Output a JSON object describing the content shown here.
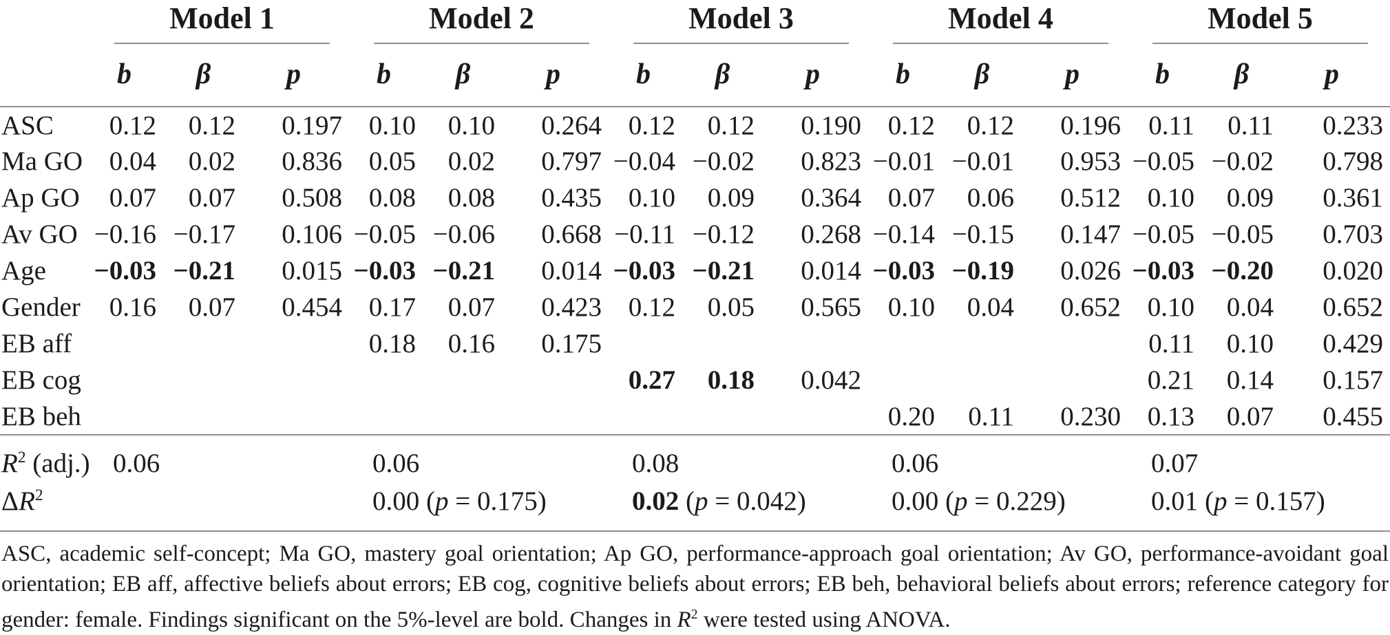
{
  "table": {
    "models": [
      "Model 1",
      "Model 2",
      "Model 3",
      "Model 4",
      "Model 5"
    ],
    "sub_columns": [
      "b",
      "β",
      "p"
    ],
    "predictor_rows": [
      {
        "label": "ASC",
        "cells": [
          [
            "0.12",
            0
          ],
          [
            "0.12",
            0
          ],
          [
            "0.197",
            0
          ],
          [
            "0.10",
            0
          ],
          [
            "0.10",
            0
          ],
          [
            "0.264",
            0
          ],
          [
            "0.12",
            0
          ],
          [
            "0.12",
            0
          ],
          [
            "0.190",
            0
          ],
          [
            "0.12",
            0
          ],
          [
            "0.12",
            0
          ],
          [
            "0.196",
            0
          ],
          [
            "0.11",
            0
          ],
          [
            "0.11",
            0
          ],
          [
            "0.233",
            0
          ]
        ]
      },
      {
        "label": "Ma GO",
        "cells": [
          [
            "0.04",
            0
          ],
          [
            "0.02",
            0
          ],
          [
            "0.836",
            0
          ],
          [
            "0.05",
            0
          ],
          [
            "0.02",
            0
          ],
          [
            "0.797",
            0
          ],
          [
            "−0.04",
            0
          ],
          [
            "−0.02",
            0
          ],
          [
            "0.823",
            0
          ],
          [
            "−0.01",
            0
          ],
          [
            "−0.01",
            0
          ],
          [
            "0.953",
            0
          ],
          [
            "−0.05",
            0
          ],
          [
            "−0.02",
            0
          ],
          [
            "0.798",
            0
          ]
        ]
      },
      {
        "label": "Ap GO",
        "cells": [
          [
            "0.07",
            0
          ],
          [
            "0.07",
            0
          ],
          [
            "0.508",
            0
          ],
          [
            "0.08",
            0
          ],
          [
            "0.08",
            0
          ],
          [
            "0.435",
            0
          ],
          [
            "0.10",
            0
          ],
          [
            "0.09",
            0
          ],
          [
            "0.364",
            0
          ],
          [
            "0.07",
            0
          ],
          [
            "0.06",
            0
          ],
          [
            "0.512",
            0
          ],
          [
            "0.10",
            0
          ],
          [
            "0.09",
            0
          ],
          [
            "0.361",
            0
          ]
        ]
      },
      {
        "label": "Av GO",
        "cells": [
          [
            "−0.16",
            0
          ],
          [
            "−0.17",
            0
          ],
          [
            "0.106",
            0
          ],
          [
            "−0.05",
            0
          ],
          [
            "−0.06",
            0
          ],
          [
            "0.668",
            0
          ],
          [
            "−0.11",
            0
          ],
          [
            "−0.12",
            0
          ],
          [
            "0.268",
            0
          ],
          [
            "−0.14",
            0
          ],
          [
            "−0.15",
            0
          ],
          [
            "0.147",
            0
          ],
          [
            "−0.05",
            0
          ],
          [
            "−0.05",
            0
          ],
          [
            "0.703",
            0
          ]
        ]
      },
      {
        "label": "Age",
        "cells": [
          [
            "−0.03",
            1
          ],
          [
            "−0.21",
            1
          ],
          [
            "0.015",
            0
          ],
          [
            "−0.03",
            1
          ],
          [
            "−0.21",
            1
          ],
          [
            "0.014",
            0
          ],
          [
            "−0.03",
            1
          ],
          [
            "−0.21",
            1
          ],
          [
            "0.014",
            0
          ],
          [
            "−0.03",
            1
          ],
          [
            "−0.19",
            1
          ],
          [
            "0.026",
            0
          ],
          [
            "−0.03",
            1
          ],
          [
            "−0.20",
            1
          ],
          [
            "0.020",
            0
          ]
        ]
      },
      {
        "label": "Gender",
        "cells": [
          [
            "0.16",
            0
          ],
          [
            "0.07",
            0
          ],
          [
            "0.454",
            0
          ],
          [
            "0.17",
            0
          ],
          [
            "0.07",
            0
          ],
          [
            "0.423",
            0
          ],
          [
            "0.12",
            0
          ],
          [
            "0.05",
            0
          ],
          [
            "0.565",
            0
          ],
          [
            "0.10",
            0
          ],
          [
            "0.04",
            0
          ],
          [
            "0.652",
            0
          ],
          [
            "0.10",
            0
          ],
          [
            "0.04",
            0
          ],
          [
            "0.652",
            0
          ]
        ]
      },
      {
        "label": "EB aff",
        "cells": [
          null,
          null,
          null,
          [
            "0.18",
            0
          ],
          [
            "0.16",
            0
          ],
          [
            "0.175",
            0
          ],
          null,
          null,
          null,
          null,
          null,
          null,
          [
            "0.11",
            0
          ],
          [
            "0.10",
            0
          ],
          [
            "0.429",
            0
          ]
        ]
      },
      {
        "label": "EB cog",
        "cells": [
          null,
          null,
          null,
          null,
          null,
          null,
          [
            "0.27",
            1
          ],
          [
            "0.18",
            1
          ],
          [
            "0.042",
            0
          ],
          null,
          null,
          null,
          [
            "0.21",
            0
          ],
          [
            "0.14",
            0
          ],
          [
            "0.157",
            0
          ]
        ]
      },
      {
        "label": "EB beh",
        "cells": [
          null,
          null,
          null,
          null,
          null,
          null,
          null,
          null,
          null,
          [
            "0.20",
            0
          ],
          [
            "0.11",
            0
          ],
          [
            "0.230",
            0
          ],
          [
            "0.13",
            0
          ],
          [
            "0.07",
            0
          ],
          [
            "0.455",
            0
          ]
        ]
      }
    ],
    "r2_adj_row": {
      "label_base": "R",
      "label_sup": "2",
      "label_suffix": " (adj.)",
      "values": [
        {
          "value": "0.06"
        },
        {
          "value": "0.06"
        },
        {
          "value": "0.08"
        },
        {
          "value": "0.06"
        },
        {
          "value": "0.07"
        }
      ]
    },
    "delta_r2_row": {
      "label_prefix": "Δ",
      "label_base": "R",
      "label_sup": "2",
      "values": [
        null,
        {
          "value": "0.00",
          "bold": false,
          "p": "0.175"
        },
        {
          "value": "0.02",
          "bold": true,
          "p": "0.042"
        },
        {
          "value": "0.00",
          "bold": false,
          "p": "0.229"
        },
        {
          "value": "0.01",
          "bold": false,
          "p": "0.157"
        }
      ]
    }
  },
  "footnote": {
    "part1": "ASC, academic self-concept; Ma GO, mastery goal orientation; Ap GO, performance-approach goal orientation; Av GO, performance-avoidant goal orientation; EB aff, affective beliefs about errors; EB cog, cognitive beliefs about errors; EB beh, behavioral beliefs about errors; reference category for gender: female. Findings significant on the 5%-level are bold. Changes in ",
    "r_base": "R",
    "r_sup": "2",
    "part2": " were tested using ANOVA."
  },
  "colors": {
    "text": "#1b1b1b",
    "rule": "#8f8f8f",
    "background": "#ffffff"
  }
}
